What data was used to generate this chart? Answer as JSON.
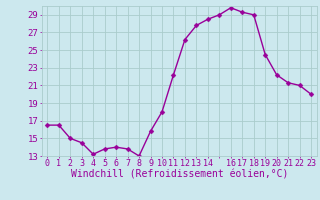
{
  "x": [
    0,
    1,
    2,
    3,
    4,
    5,
    6,
    7,
    8,
    9,
    10,
    11,
    12,
    13,
    14,
    15,
    16,
    17,
    18,
    19,
    20,
    21,
    22,
    23
  ],
  "y": [
    16.5,
    16.5,
    15.0,
    14.5,
    13.2,
    13.8,
    14.0,
    13.8,
    13.0,
    15.8,
    18.0,
    22.2,
    26.2,
    27.8,
    28.5,
    29.0,
    29.8,
    29.3,
    29.0,
    24.5,
    22.2,
    21.3,
    21.0,
    20.0
  ],
  "xlabel": "Windchill (Refroidissement éolien,°C)",
  "ylim": [
    13,
    30
  ],
  "xlim": [
    -0.5,
    23.5
  ],
  "yticks": [
    13,
    15,
    17,
    19,
    21,
    23,
    25,
    27,
    29
  ],
  "xtick_labels": [
    "0",
    "1",
    "2",
    "3",
    "4",
    "5",
    "6",
    "7",
    "8",
    "9",
    "10",
    "11",
    "12",
    "13",
    "14",
    "",
    "16",
    "17",
    "18",
    "19",
    "20",
    "21",
    "22",
    "23"
  ],
  "line_color": "#990099",
  "marker_color": "#990099",
  "bg_color": "#cce8ee",
  "grid_color": "#aacccc",
  "label_color": "#990099",
  "tick_color": "#990099",
  "xlabel_fontsize": 7,
  "tick_fontsize": 6.5,
  "line_width": 1.0,
  "marker_size": 2.5
}
